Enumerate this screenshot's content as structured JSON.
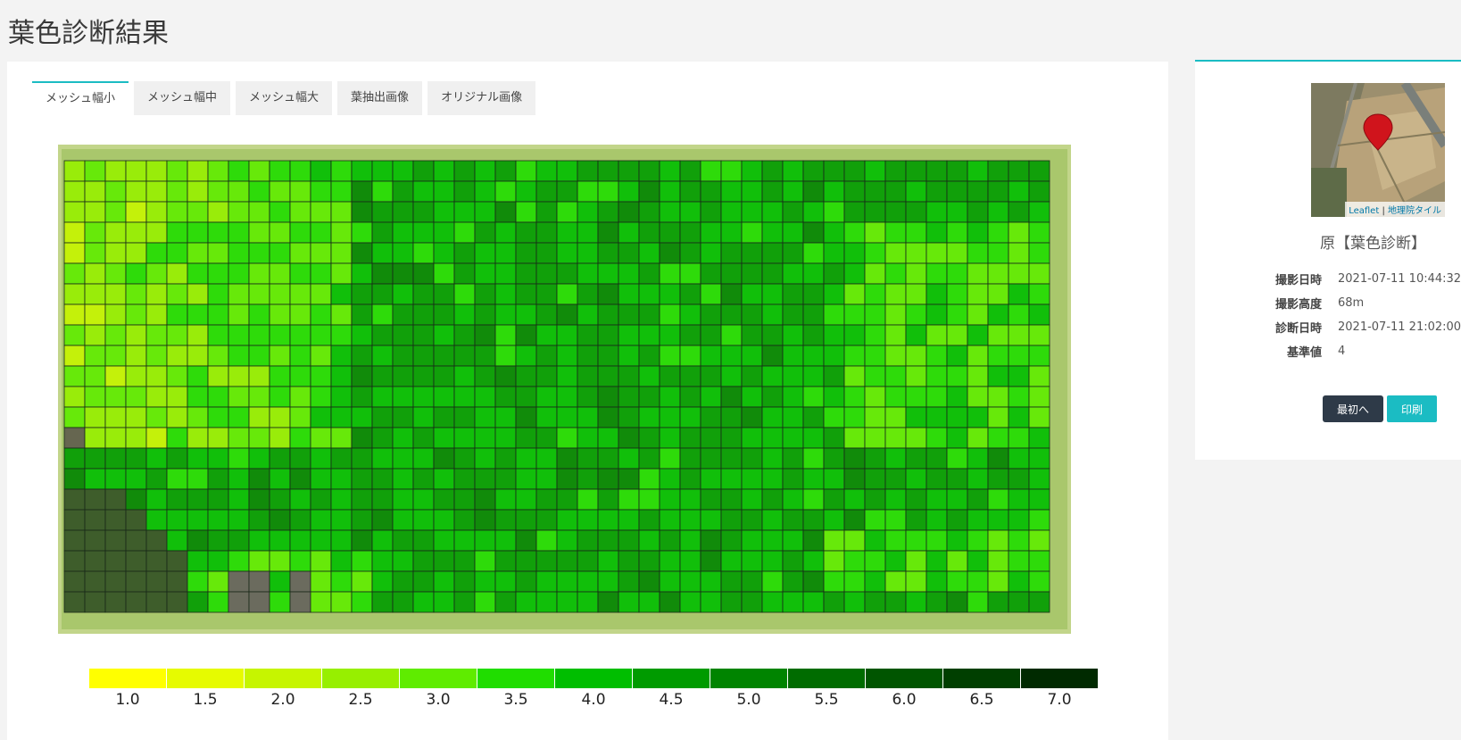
{
  "page": {
    "title": "葉色診断結果"
  },
  "tabs": [
    {
      "label": "メッシュ幅小",
      "active": true
    },
    {
      "label": "メッシュ幅中",
      "active": false
    },
    {
      "label": "メッシュ幅大",
      "active": false
    },
    {
      "label": "葉抽出画像",
      "active": false
    },
    {
      "label": "オリジナル画像",
      "active": false
    }
  ],
  "legend": {
    "items": [
      {
        "label": "1.0",
        "color": "#ffff00"
      },
      {
        "label": "1.5",
        "color": "#e6fb00"
      },
      {
        "label": "2.0",
        "color": "#c6f500"
      },
      {
        "label": "2.5",
        "color": "#97ef00"
      },
      {
        "label": "3.0",
        "color": "#5fec00"
      },
      {
        "label": "3.5",
        "color": "#20dd00"
      },
      {
        "label": "4.0",
        "color": "#00be00"
      },
      {
        "label": "4.5",
        "color": "#009b00"
      },
      {
        "label": "5.0",
        "color": "#008400"
      },
      {
        "label": "5.5",
        "color": "#006c00"
      },
      {
        "label": "6.0",
        "color": "#005500"
      },
      {
        "label": "6.5",
        "color": "#003f00"
      },
      {
        "label": "7.0",
        "color": "#002a00"
      }
    ]
  },
  "map": {
    "attribution_leaflet": "Leaflet",
    "attribution_sep": " | ",
    "attribution_tile": "地理院タイル",
    "marker_color": "#d0141c"
  },
  "info": {
    "field_name": "原【葉色診断】",
    "rows": [
      {
        "key": "撮影日時",
        "value": "2021-07-11 10:44:32"
      },
      {
        "key": "撮影高度",
        "value": "68m"
      },
      {
        "key": "診断日時",
        "value": "2021-07-11 21:02:00"
      },
      {
        "key": "基準値",
        "value": "4"
      }
    ]
  },
  "buttons": {
    "first": "最初へ",
    "print": "印刷"
  }
}
